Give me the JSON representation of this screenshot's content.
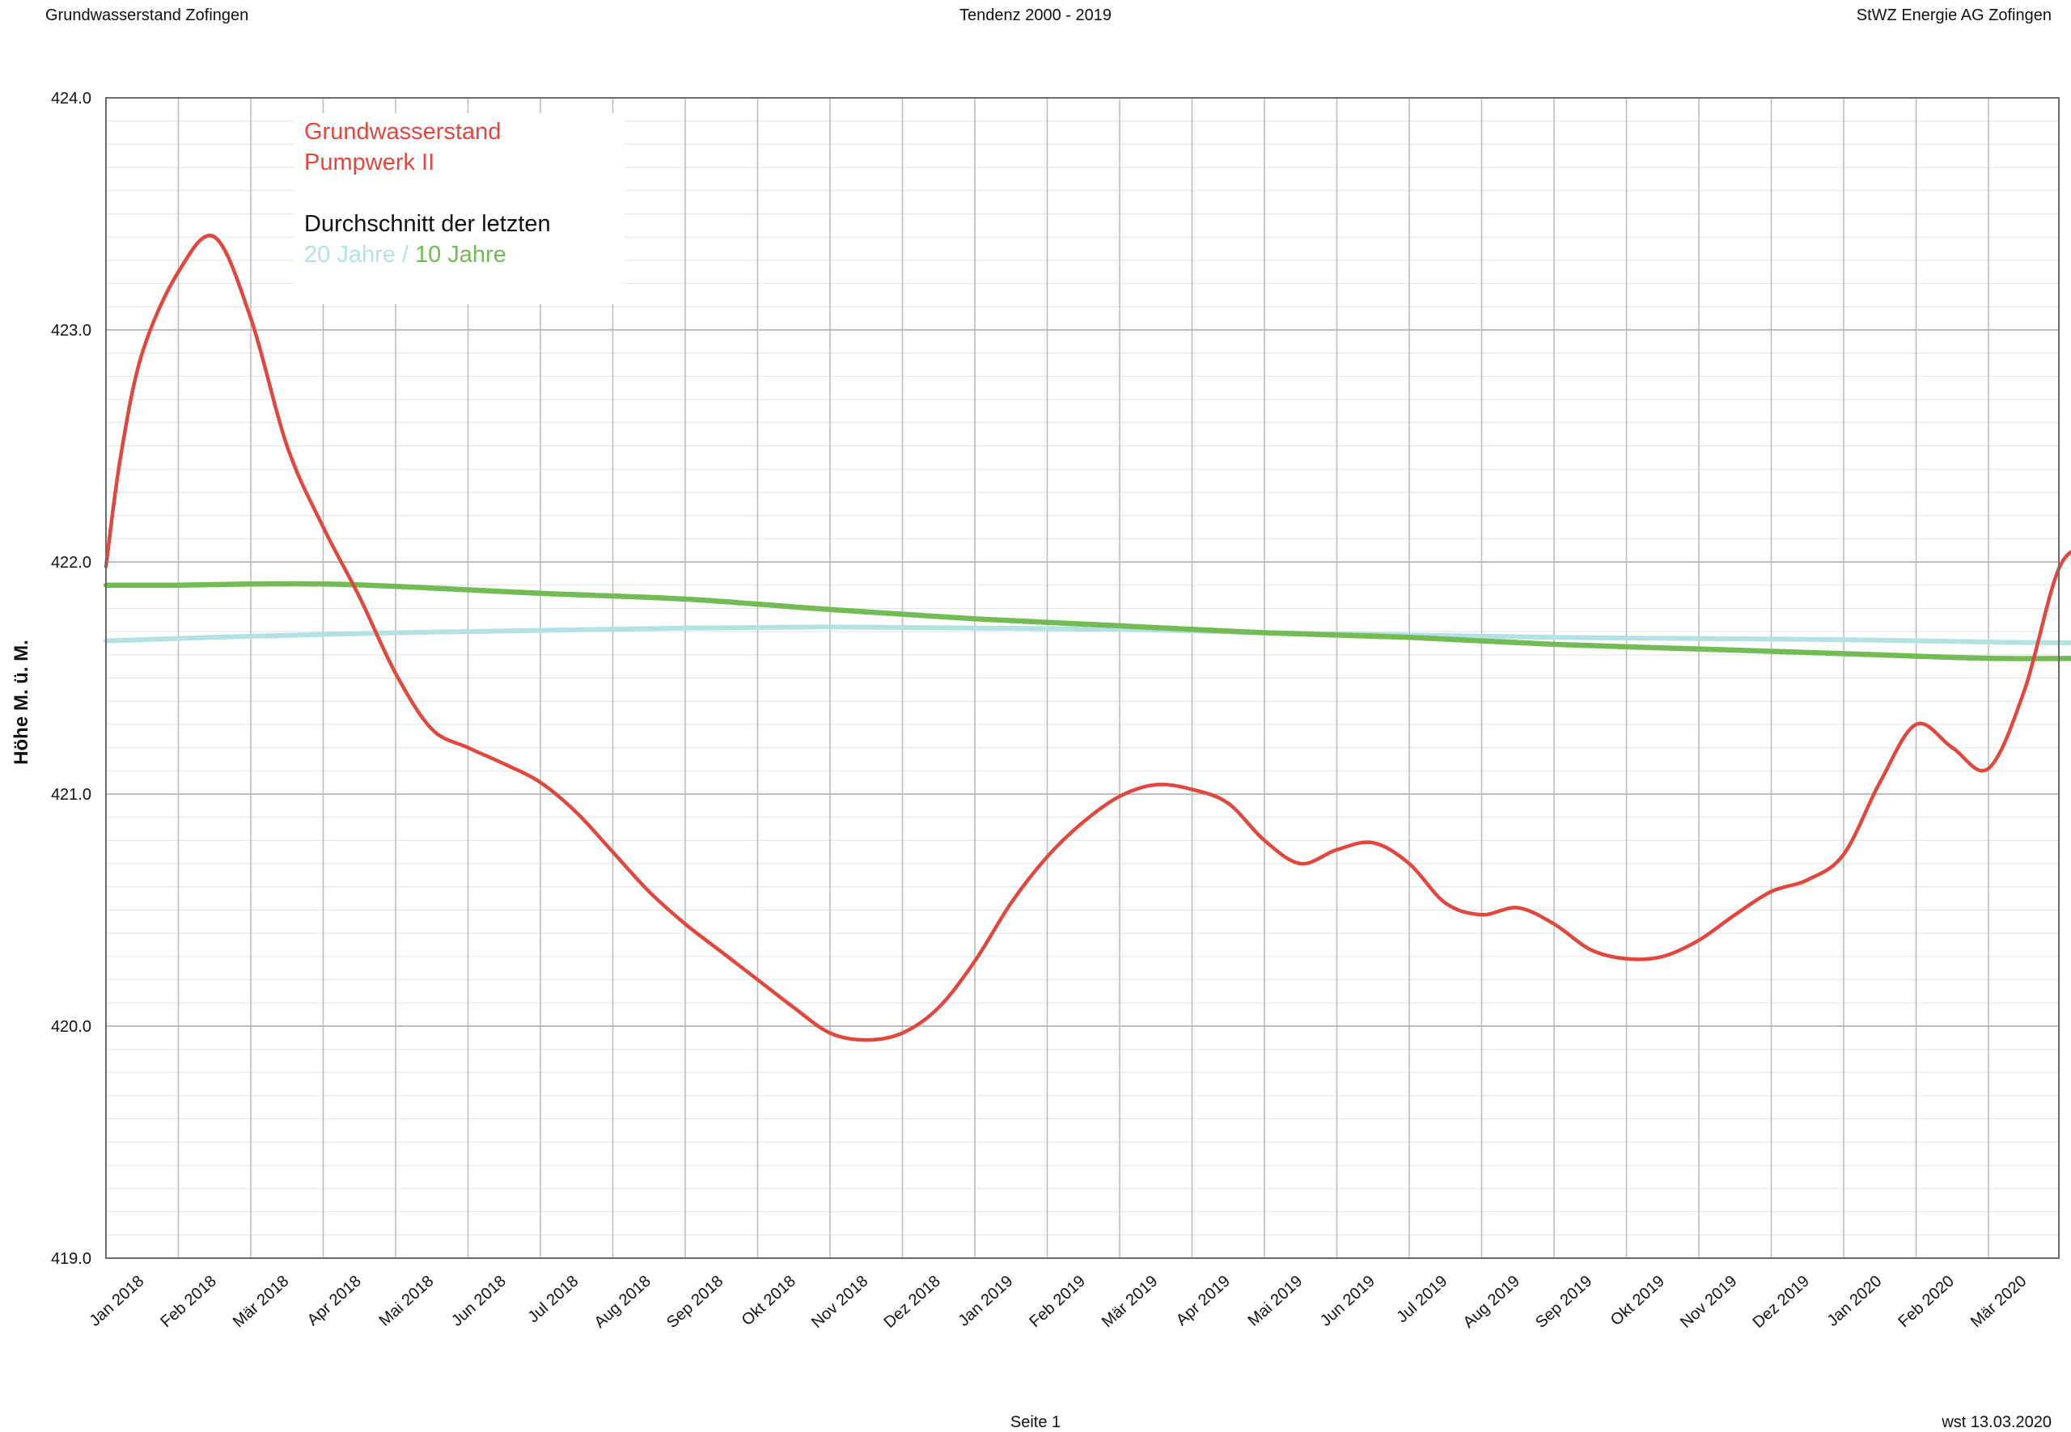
{
  "header": {
    "left": "Grundwasserstand Zofingen",
    "center": "Tendenz 2000 - 2019",
    "right": "StWZ Energie AG Zofingen"
  },
  "footer": {
    "page": "Seite 1",
    "stamp": "wst  13.03.2020"
  },
  "legend": {
    "line1": "Grundwasserstand",
    "line2": "Pumpwerk II",
    "line3": "Durchschnitt der letzten",
    "part_20": "20 Jahre /",
    "part_10": "10 Jahre"
  },
  "chart_data": {
    "type": "line",
    "ylabel": "Höhe M. ü. M.",
    "ylim": [
      419.0,
      424.0
    ],
    "yticks": [
      "419.0",
      "420.0",
      "421.0",
      "422.0",
      "423.0",
      "424.0"
    ],
    "x_labels": [
      "Jan 2018",
      "Feb 2018",
      "Mär 2018",
      "Apr 2018",
      "Mai 2018",
      "Jun 2018",
      "Jul 2018",
      "Aug 2018",
      "Sep 2018",
      "Okt 2018",
      "Nov 2018",
      "Dez 2018",
      "Jan 2019",
      "Feb 2019",
      "Mär 2019",
      "Apr 2019",
      "Mai 2019",
      "Jun 2019",
      "Jul 2019",
      "Aug 2019",
      "Sep 2019",
      "Okt 2019",
      "Nov 2019",
      "Dez 2019",
      "Jan 2020",
      "Feb 2020",
      "Mär 2020"
    ],
    "x_range": [
      0,
      27
    ],
    "grid": true,
    "series": [
      {
        "key": "pumpwerk",
        "color": "#e0483f",
        "points": [
          [
            0,
            421.98
          ],
          [
            0.2,
            422.45
          ],
          [
            0.5,
            422.9
          ],
          [
            1,
            423.25
          ],
          [
            1.5,
            423.4
          ],
          [
            2,
            423.05
          ],
          [
            2.5,
            422.5
          ],
          [
            3,
            422.15
          ],
          [
            3.5,
            421.85
          ],
          [
            4,
            421.52
          ],
          [
            4.5,
            421.28
          ],
          [
            5,
            421.2
          ],
          [
            5.5,
            421.13
          ],
          [
            6,
            421.05
          ],
          [
            6.5,
            420.92
          ],
          [
            7,
            420.75
          ],
          [
            7.5,
            420.58
          ],
          [
            8,
            420.44
          ],
          [
            8.5,
            420.32
          ],
          [
            9,
            420.2
          ],
          [
            9.5,
            420.08
          ],
          [
            10,
            419.97
          ],
          [
            10.5,
            419.94
          ],
          [
            11,
            419.97
          ],
          [
            11.5,
            420.08
          ],
          [
            12,
            420.28
          ],
          [
            12.5,
            420.53
          ],
          [
            13,
            420.73
          ],
          [
            13.5,
            420.88
          ],
          [
            14,
            420.99
          ],
          [
            14.5,
            421.04
          ],
          [
            15,
            421.02
          ],
          [
            15.5,
            420.96
          ],
          [
            16,
            420.8
          ],
          [
            16.5,
            420.7
          ],
          [
            17,
            420.76
          ],
          [
            17.5,
            420.79
          ],
          [
            18,
            420.7
          ],
          [
            18.5,
            420.53
          ],
          [
            19,
            420.48
          ],
          [
            19.5,
            420.51
          ],
          [
            20,
            420.44
          ],
          [
            20.5,
            420.33
          ],
          [
            21,
            420.29
          ],
          [
            21.5,
            420.3
          ],
          [
            22,
            420.37
          ],
          [
            22.5,
            420.48
          ],
          [
            23,
            420.58
          ],
          [
            23.5,
            420.63
          ],
          [
            24,
            420.74
          ],
          [
            24.5,
            421.05
          ],
          [
            25,
            421.3
          ],
          [
            25.5,
            421.2
          ],
          [
            26,
            421.11
          ],
          [
            26.5,
            421.45
          ],
          [
            27,
            421.99
          ],
          [
            27.5,
            422.06
          ]
        ]
      },
      {
        "key": "avg20",
        "color": "#b4e1e3",
        "points": [
          [
            0,
            421.66
          ],
          [
            2,
            421.68
          ],
          [
            4,
            421.695
          ],
          [
            6,
            421.705
          ],
          [
            8,
            421.715
          ],
          [
            10,
            421.72
          ],
          [
            12,
            421.715
          ],
          [
            14,
            421.71
          ],
          [
            16,
            421.695
          ],
          [
            18,
            421.685
          ],
          [
            20,
            421.675
          ],
          [
            22,
            421.67
          ],
          [
            24,
            421.665
          ],
          [
            26,
            421.655
          ],
          [
            27.5,
            421.65
          ]
        ]
      },
      {
        "key": "avg10",
        "color": "#72bb55",
        "points": [
          [
            0,
            421.9
          ],
          [
            1,
            421.9
          ],
          [
            2,
            421.905
          ],
          [
            3,
            421.905
          ],
          [
            4,
            421.895
          ],
          [
            6,
            421.865
          ],
          [
            8,
            421.84
          ],
          [
            10,
            421.795
          ],
          [
            12,
            421.755
          ],
          [
            14,
            421.725
          ],
          [
            16,
            421.695
          ],
          [
            18,
            421.675
          ],
          [
            20,
            421.645
          ],
          [
            22,
            421.625
          ],
          [
            24,
            421.605
          ],
          [
            26,
            421.585
          ],
          [
            27.5,
            421.585
          ]
        ]
      }
    ]
  }
}
